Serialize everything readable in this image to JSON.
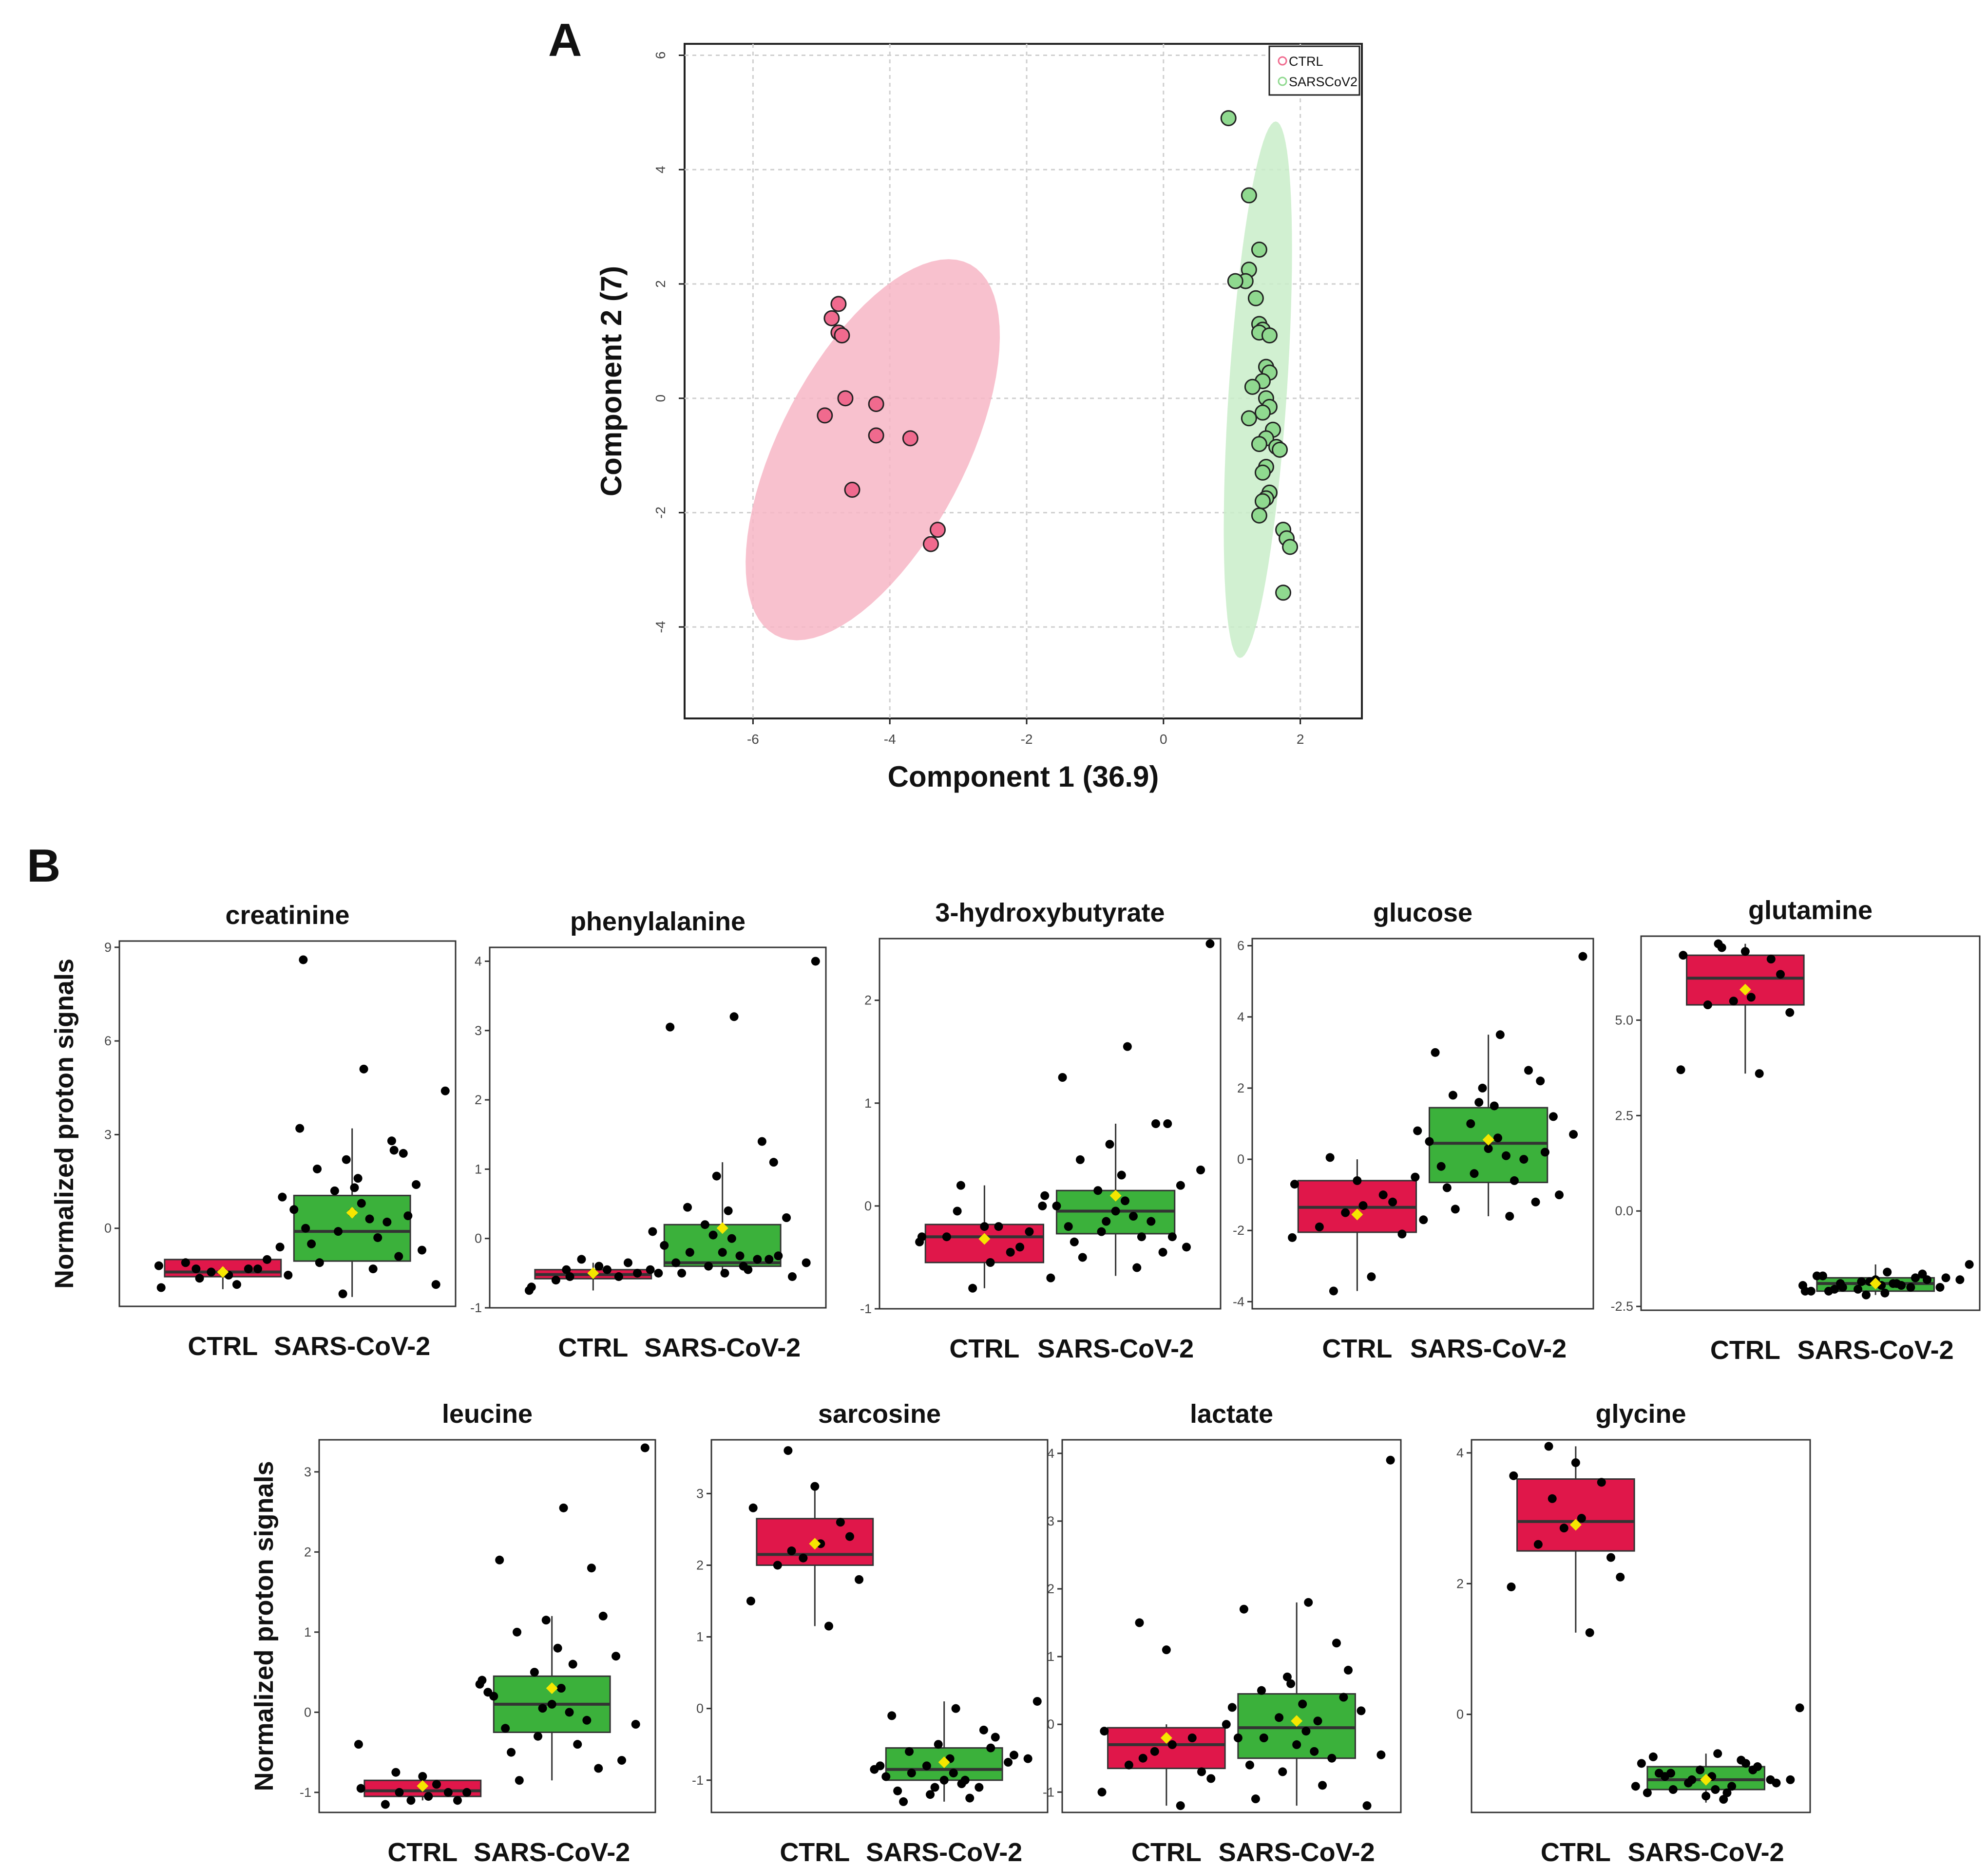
{
  "panels": {
    "a": "A",
    "b": "B"
  },
  "chart_data": [
    {
      "type": "scatter",
      "title": "",
      "xlabel": "Component 1 (36.9)",
      "ylabel": "Component 2 (7)",
      "xlim": [
        -7,
        2.9
      ],
      "ylim": [
        -5.6,
        6.2
      ],
      "xticks": [
        "-6",
        "-4",
        "-2",
        "0",
        "2"
      ],
      "yticks": [
        "-4",
        "-2",
        "0",
        "2",
        "4",
        "6"
      ],
      "grid": true,
      "legend": {
        "position": "top-right",
        "entries": [
          "CTRL",
          "SARSCoV2"
        ]
      },
      "colors": {
        "CTRL": "#f06a8e",
        "SARSCoV2": "#8fd98f",
        "CTRL_ellipse": "#f7b6c6",
        "SARSCoV2_ellipse": "#c9edc9"
      },
      "ellipses": [
        {
          "name": "CTRL",
          "cx": -4.25,
          "cy": -0.9,
          "angle_deg": 68,
          "major": 7.1,
          "minor": 2.8
        },
        {
          "name": "SARSCoV2",
          "cx": 1.38,
          "cy": 0.15,
          "angle_deg": 86.8,
          "major": 9.4,
          "minor": 0.85
        }
      ],
      "series": [
        {
          "name": "CTRL",
          "points": [
            [
              -4.75,
              1.65
            ],
            [
              -4.85,
              1.4
            ],
            [
              -4.75,
              1.15
            ],
            [
              -4.7,
              1.1
            ],
            [
              -4.65,
              0.0
            ],
            [
              -4.95,
              -0.3
            ],
            [
              -4.2,
              -0.1
            ],
            [
              -4.2,
              -0.65
            ],
            [
              -3.7,
              -0.7
            ],
            [
              -4.55,
              -1.6
            ],
            [
              -3.3,
              -2.3
            ],
            [
              -3.4,
              -2.55
            ]
          ]
        },
        {
          "name": "SARSCoV2",
          "points": [
            [
              0.95,
              4.9
            ],
            [
              1.25,
              3.55
            ],
            [
              1.4,
              2.6
            ],
            [
              1.25,
              2.25
            ],
            [
              1.2,
              2.05
            ],
            [
              1.05,
              2.05
            ],
            [
              1.35,
              1.75
            ],
            [
              1.4,
              1.3
            ],
            [
              1.45,
              1.2
            ],
            [
              1.4,
              1.15
            ],
            [
              1.55,
              1.1
            ],
            [
              1.5,
              0.55
            ],
            [
              1.55,
              0.45
            ],
            [
              1.45,
              0.3
            ],
            [
              1.3,
              0.2
            ],
            [
              1.5,
              0.0
            ],
            [
              1.55,
              -0.15
            ],
            [
              1.45,
              -0.25
            ],
            [
              1.25,
              -0.35
            ],
            [
              1.6,
              -0.55
            ],
            [
              1.5,
              -0.7
            ],
            [
              1.4,
              -0.8
            ],
            [
              1.65,
              -0.85
            ],
            [
              1.7,
              -0.9
            ],
            [
              1.5,
              -1.2
            ],
            [
              1.45,
              -1.3
            ],
            [
              1.55,
              -1.65
            ],
            [
              1.5,
              -1.75
            ],
            [
              1.45,
              -1.8
            ],
            [
              1.4,
              -2.05
            ],
            [
              1.75,
              -2.3
            ],
            [
              1.8,
              -2.45
            ],
            [
              1.85,
              -2.6
            ],
            [
              1.75,
              -3.4
            ]
          ]
        }
      ]
    },
    {
      "type": "box",
      "title": "creatinine",
      "ylabel": "Normalized proton signals",
      "categories": [
        "CTRL",
        "SARS-CoV-2"
      ],
      "ylim": [
        -2.5,
        9.2
      ],
      "yticks": [
        0,
        3,
        6,
        9
      ],
      "ytick_labels": [
        "0",
        "3",
        "6",
        "9"
      ],
      "boxes": [
        {
          "q1": -1.55,
          "median": -1.4,
          "q3": -1.0,
          "low": -1.95,
          "high": -1.0,
          "mean": -1.4,
          "color": "#e0174a"
        },
        {
          "q1": -1.05,
          "median": -0.1,
          "q3": 1.05,
          "low": -2.2,
          "high": 3.2,
          "mean": 0.5,
          "color": "#3bb13b"
        }
      ],
      "points": [
        [
          [
            -1.3,
            -1.4,
            -1.9,
            -1.3,
            -1.5,
            -1.4,
            -1.1,
            -1.0,
            -1.2,
            -1.8,
            -1.6,
            -1.3
          ],
          [
            4.4,
            5.1,
            3.2,
            2.8,
            2.4,
            2.2,
            1.9,
            1.6,
            1.4,
            1.2,
            1.0,
            0.8,
            0.6,
            0.5,
            0.3,
            0.2,
            0.0,
            -0.1,
            -0.3,
            -0.5,
            -0.7,
            -0.9,
            -1.1,
            -1.3,
            -1.5,
            -1.8,
            -2.1,
            -0.6,
            0.4,
            1.3,
            2.5,
            8.6
          ]
        ]
      ]
    },
    {
      "type": "box",
      "title": "phenylalanine",
      "ylabel": "",
      "categories": [
        "CTRL",
        "SARS-CoV-2"
      ],
      "ylim": [
        -1.0,
        4.2
      ],
      "yticks": [
        -1,
        0,
        1,
        2,
        3,
        4
      ],
      "ytick_labels": [
        "-1",
        "0",
        "1",
        "2",
        "3",
        "4"
      ],
      "boxes": [
        {
          "q1": -0.58,
          "median": -0.52,
          "q3": -0.45,
          "low": -0.75,
          "high": -0.35,
          "mean": -0.5,
          "color": "#e0174a"
        },
        {
          "q1": -0.4,
          "median": -0.35,
          "q3": 0.2,
          "low": -0.55,
          "high": 1.1,
          "mean": 0.15,
          "color": "#3bb13b"
        }
      ],
      "points": [
        [
          [
            -0.45,
            -0.5,
            -0.7,
            -0.55,
            -0.4,
            -0.3,
            -0.6,
            -0.5,
            -0.75,
            -0.45,
            -0.55,
            -0.35
          ],
          [
            4.0,
            3.2,
            3.05,
            1.4,
            1.1,
            0.9,
            0.45,
            0.4,
            0.3,
            0.2,
            0.1,
            0.0,
            -0.1,
            -0.2,
            -0.25,
            -0.3,
            -0.35,
            -0.4,
            -0.45,
            -0.5,
            -0.55,
            -0.3,
            -0.2,
            -0.4,
            -0.5,
            -0.35,
            0.05,
            -0.45,
            -0.25,
            -0.5
          ]
        ]
      ]
    },
    {
      "type": "box",
      "title": "3-hydroxybutyrate",
      "ylabel": "",
      "categories": [
        "CTRL",
        "SARS-CoV-2"
      ],
      "ylim": [
        -1.0,
        2.6
      ],
      "yticks": [
        -1,
        0,
        1,
        2
      ],
      "ytick_labels": [
        "-1",
        "0",
        "1",
        "2"
      ],
      "boxes": [
        {
          "q1": -0.55,
          "median": -0.3,
          "q3": -0.18,
          "low": -0.8,
          "high": 0.2,
          "mean": -0.32,
          "color": "#e0174a"
        },
        {
          "q1": -0.27,
          "median": -0.05,
          "q3": 0.15,
          "low": -0.68,
          "high": 0.8,
          "mean": 0.1,
          "color": "#3bb13b"
        }
      ],
      "points": [
        [
          [
            -0.05,
            -0.2,
            -0.3,
            -0.45,
            -0.55,
            -0.8,
            -0.3,
            -0.25,
            -0.35,
            -0.2,
            0.2,
            -0.4
          ],
          [
            2.55,
            1.55,
            1.25,
            0.8,
            0.8,
            0.6,
            0.45,
            0.3,
            0.2,
            0.15,
            0.1,
            0.05,
            0.0,
            -0.05,
            -0.1,
            -0.15,
            -0.2,
            -0.25,
            -0.3,
            -0.35,
            -0.4,
            -0.45,
            -0.5,
            -0.6,
            -0.7,
            0.35,
            -0.15,
            0.0,
            -0.3
          ]
        ]
      ]
    },
    {
      "type": "box",
      "title": "glucose",
      "ylabel": "",
      "categories": [
        "CTRL",
        "SARS-CoV-2"
      ],
      "ylim": [
        -4.2,
        6.2
      ],
      "yticks": [
        -4,
        -2,
        0,
        2,
        4,
        6
      ],
      "ytick_labels": [
        "-4",
        "-2",
        "0",
        "2",
        "4",
        "6"
      ],
      "boxes": [
        {
          "q1": -2.05,
          "median": -1.35,
          "q3": -0.6,
          "low": -3.7,
          "high": 0.0,
          "mean": -1.55,
          "color": "#e0174a"
        },
        {
          "q1": -0.65,
          "median": 0.45,
          "q3": 1.45,
          "low": -1.6,
          "high": 3.5,
          "mean": 0.55,
          "color": "#3bb13b"
        }
      ],
      "points": [
        [
          [
            0.05,
            -0.6,
            -0.7,
            -1.0,
            -1.3,
            -1.5,
            -1.9,
            -2.1,
            -2.2,
            -3.3,
            -3.7,
            -1.2
          ],
          [
            5.7,
            3.5,
            3.0,
            2.5,
            2.2,
            2.0,
            1.8,
            1.5,
            1.2,
            1.0,
            0.8,
            0.6,
            0.5,
            0.3,
            0.1,
            0.0,
            -0.2,
            -0.4,
            -0.6,
            -0.8,
            -1.0,
            -1.2,
            -1.4,
            -1.6,
            -1.7,
            0.7,
            1.6,
            -0.5,
            0.2
          ]
        ]
      ]
    },
    {
      "type": "box",
      "title": "glutamine",
      "ylabel": "",
      "categories": [
        "CTRL",
        "SARS-CoV-2"
      ],
      "ylim": [
        -2.6,
        7.2
      ],
      "yticks": [
        -2.5,
        0,
        2.5,
        5
      ],
      "ytick_labels": [
        "-2.5",
        "0.0",
        "2.5",
        "5.0"
      ],
      "boxes": [
        {
          "q1": 5.4,
          "median": 6.1,
          "q3": 6.7,
          "low": 3.6,
          "high": 7.0,
          "mean": 5.8,
          "color": "#e0174a"
        },
        {
          "q1": -2.1,
          "median": -1.9,
          "q3": -1.75,
          "low": -2.2,
          "high": -1.4,
          "mean": -1.9,
          "color": "#3bb13b"
        }
      ],
      "points": [
        [
          [
            7.0,
            6.8,
            6.7,
            6.6,
            5.6,
            5.5,
            5.4,
            5.2,
            3.7,
            3.6,
            6.9,
            6.2
          ],
          [
            -1.4,
            -1.6,
            -1.7,
            -1.75,
            -1.8,
            -1.85,
            -1.9,
            -1.95,
            -2.0,
            -2.05,
            -2.1,
            -2.15,
            -1.7,
            -1.8,
            -1.9,
            -2.0,
            -2.1,
            -1.85,
            -1.95,
            -2.05,
            -1.75,
            -1.65,
            -2.0,
            -1.9,
            -2.1,
            -1.8,
            -2.2,
            -1.95
          ]
        ]
      ]
    },
    {
      "type": "box",
      "title": "leucine",
      "ylabel": "Normalized proton signals",
      "categories": [
        "CTRL",
        "SARS-CoV-2"
      ],
      "ylim": [
        -1.25,
        3.4
      ],
      "yticks": [
        -1,
        0,
        1,
        2,
        3
      ],
      "ytick_labels": [
        "-1",
        "0",
        "1",
        "2",
        "3"
      ],
      "boxes": [
        {
          "q1": -1.05,
          "median": -0.98,
          "q3": -0.85,
          "low": -1.1,
          "high": -0.75,
          "mean": -0.92,
          "color": "#e0174a"
        },
        {
          "q1": -0.25,
          "median": 0.1,
          "q3": 0.45,
          "low": -0.85,
          "high": 1.2,
          "mean": 0.3,
          "color": "#3bb13b"
        }
      ],
      "points": [
        [
          [
            -0.75,
            -0.8,
            -0.95,
            -1.0,
            -1.05,
            -1.1,
            -1.15,
            -1.0,
            -0.4,
            -0.9,
            -1.0,
            -1.1
          ],
          [
            3.3,
            2.55,
            1.9,
            1.8,
            1.2,
            1.15,
            1.0,
            0.8,
            0.7,
            0.5,
            0.4,
            0.3,
            0.2,
            0.1,
            0.0,
            -0.1,
            -0.2,
            -0.3,
            -0.4,
            -0.5,
            -0.6,
            -0.7,
            -0.85,
            0.6,
            0.25,
            -0.15,
            0.05,
            0.35
          ]
        ]
      ]
    },
    {
      "type": "box",
      "title": "sarcosine",
      "ylabel": "",
      "categories": [
        "CTRL",
        "SARS-CoV-2"
      ],
      "ylim": [
        -1.45,
        3.75
      ],
      "yticks": [
        -1,
        0,
        1,
        2,
        3
      ],
      "ytick_labels": [
        "-1",
        "0",
        "1",
        "2",
        "3"
      ],
      "boxes": [
        {
          "q1": 2.0,
          "median": 2.15,
          "q3": 2.65,
          "low": 1.15,
          "high": 3.1,
          "mean": 2.3,
          "color": "#e0174a"
        },
        {
          "q1": -1.0,
          "median": -0.85,
          "q3": -0.55,
          "low": -1.3,
          "high": 0.1,
          "mean": -0.75,
          "color": "#3bb13b"
        }
      ],
      "points": [
        [
          [
            3.6,
            3.1,
            2.8,
            2.6,
            2.3,
            2.1,
            2.0,
            1.8,
            1.5,
            1.15,
            2.2,
            2.4
          ],
          [
            0.1,
            0.0,
            -0.1,
            -0.3,
            -0.4,
            -0.5,
            -0.6,
            -0.7,
            -0.75,
            -0.8,
            -0.85,
            -0.9,
            -0.95,
            -1.0,
            -1.05,
            -1.1,
            -1.15,
            -1.2,
            -1.25,
            -1.3,
            -0.65,
            -0.55,
            -0.9,
            -1.0,
            -0.8,
            -0.7,
            -1.1
          ]
        ]
      ]
    },
    {
      "type": "box",
      "title": "lactate",
      "ylabel": "",
      "categories": [
        "CTRL",
        "SARS-CoV-2"
      ],
      "ylim": [
        -1.3,
        4.2
      ],
      "yticks": [
        -1,
        0,
        1,
        2,
        3,
        4
      ],
      "ytick_labels": [
        "-1",
        "0",
        "1",
        "2",
        "3",
        "4"
      ],
      "boxes": [
        {
          "q1": -0.65,
          "median": -0.3,
          "q3": -0.05,
          "low": -1.2,
          "high": 0.0,
          "mean": -0.2,
          "color": "#e0174a"
        },
        {
          "q1": -0.5,
          "median": -0.05,
          "q3": 0.45,
          "low": -1.2,
          "high": 1.8,
          "mean": 0.05,
          "color": "#3bb13b"
        }
      ],
      "points": [
        [
          [
            1.5,
            1.1,
            -0.1,
            -0.2,
            -0.3,
            -0.4,
            -0.6,
            -0.8,
            -1.0,
            -1.2,
            -0.5,
            -0.7
          ],
          [
            3.9,
            1.8,
            1.7,
            1.2,
            0.8,
            0.6,
            0.5,
            0.3,
            0.2,
            0.1,
            0.0,
            -0.1,
            -0.2,
            -0.3,
            -0.4,
            -0.5,
            -0.6,
            -0.7,
            -0.9,
            -1.1,
            -1.2,
            0.4,
            -0.2,
            0.05,
            0.25,
            -0.45,
            0.7
          ]
        ]
      ]
    },
    {
      "type": "box",
      "title": "glycine",
      "ylabel": "",
      "categories": [
        "CTRL",
        "SARS-CoV-2"
      ],
      "ylim": [
        -1.5,
        4.2
      ],
      "yticks": [
        0,
        2,
        4
      ],
      "ytick_labels": [
        "0",
        "2",
        "4"
      ],
      "boxes": [
        {
          "q1": 2.5,
          "median": 2.95,
          "q3": 3.6,
          "low": 1.25,
          "high": 4.1,
          "mean": 2.9,
          "color": "#e0174a"
        },
        {
          "q1": -1.15,
          "median": -1.0,
          "q3": -0.8,
          "low": -1.35,
          "high": -0.6,
          "mean": -1.0,
          "color": "#3bb13b"
        }
      ],
      "points": [
        [
          [
            4.1,
            3.85,
            3.65,
            3.55,
            3.0,
            2.85,
            2.6,
            2.1,
            1.95,
            1.25,
            3.3,
            2.4
          ],
          [
            0.1,
            -0.6,
            -0.65,
            -0.75,
            -0.8,
            -0.85,
            -0.9,
            -0.95,
            -1.0,
            -1.05,
            -1.1,
            -1.15,
            -1.2,
            -1.25,
            -1.3,
            -0.7,
            -0.9,
            -1.0,
            -1.1,
            -0.95,
            -1.05,
            -0.85,
            -1.15,
            -1.2,
            -0.75,
            -1.0
          ]
        ]
      ]
    }
  ]
}
